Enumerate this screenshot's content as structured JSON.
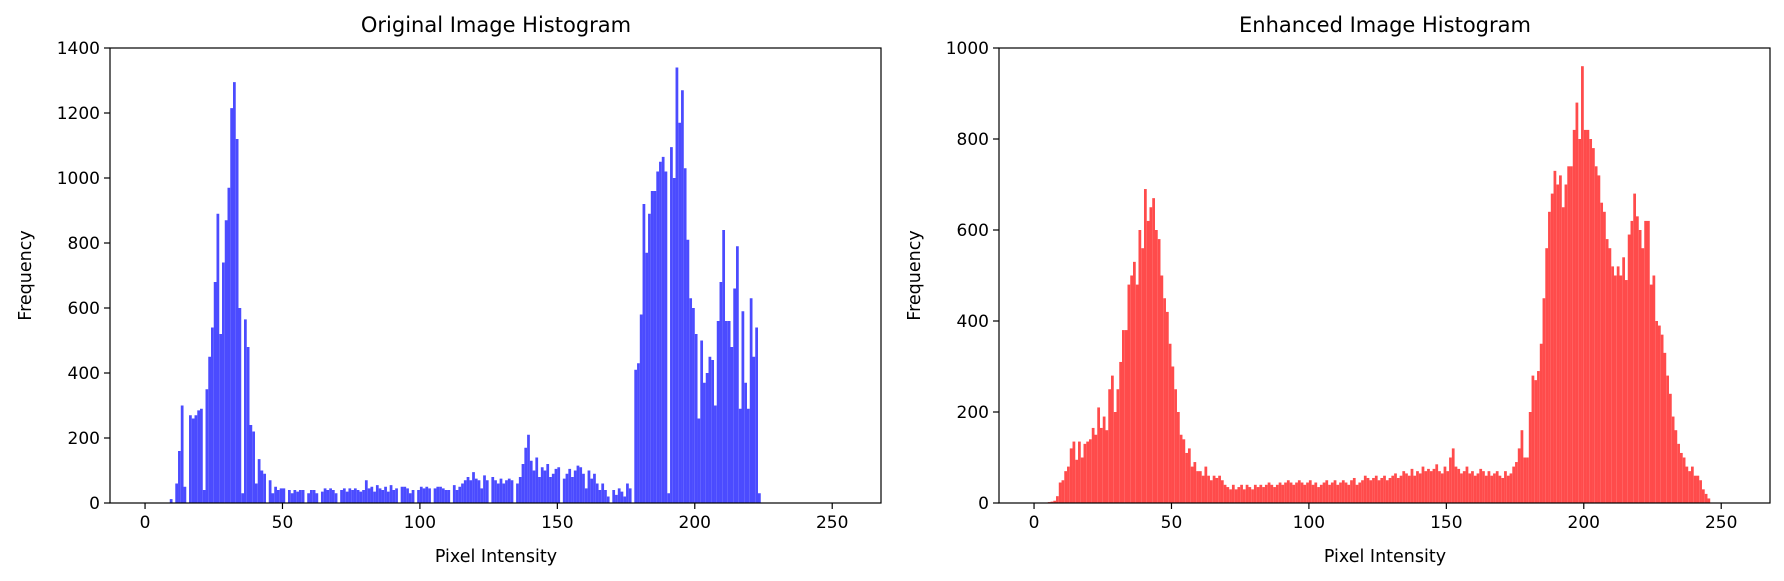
{
  "chart_data": [
    {
      "type": "bar",
      "title": "Original Image Histogram",
      "xlabel": "Pixel Intensity",
      "ylabel": "Frequency",
      "xlim": [
        -12.75,
        267.75
      ],
      "ylim": [
        0,
        1400
      ],
      "xticks": [
        0,
        50,
        100,
        150,
        200,
        250
      ],
      "yticks": [
        0,
        200,
        400,
        600,
        800,
        1000,
        1200,
        1400
      ],
      "grid": false,
      "bar_color": "#4b4bff",
      "x_start": 0,
      "bin_width": 1,
      "values": [
        0,
        0,
        0,
        0,
        0,
        0,
        0,
        0,
        0,
        12,
        0,
        60,
        160,
        300,
        50,
        0,
        270,
        260,
        270,
        285,
        290,
        40,
        350,
        450,
        540,
        680,
        890,
        520,
        740,
        870,
        970,
        1215,
        1295,
        1120,
        600,
        30,
        565,
        480,
        240,
        220,
        60,
        135,
        100,
        90,
        0,
        70,
        30,
        50,
        40,
        45,
        45,
        0,
        40,
        30,
        40,
        35,
        40,
        40,
        0,
        30,
        40,
        40,
        30,
        0,
        35,
        45,
        40,
        45,
        40,
        30,
        0,
        40,
        45,
        35,
        45,
        40,
        45,
        40,
        35,
        40,
        70,
        45,
        50,
        35,
        55,
        45,
        40,
        50,
        35,
        55,
        40,
        45,
        0,
        50,
        50,
        45,
        30,
        40,
        0,
        40,
        50,
        45,
        50,
        45,
        0,
        45,
        50,
        50,
        45,
        40,
        40,
        0,
        55,
        40,
        50,
        60,
        70,
        80,
        70,
        95,
        75,
        70,
        45,
        85,
        70,
        0,
        80,
        70,
        60,
        75,
        60,
        70,
        75,
        70,
        0,
        60,
        80,
        120,
        170,
        210,
        130,
        100,
        140,
        80,
        110,
        100,
        120,
        80,
        90,
        105,
        110,
        0,
        75,
        90,
        105,
        80,
        100,
        115,
        110,
        90,
        45,
        100,
        75,
        90,
        60,
        40,
        60,
        40,
        20,
        0,
        40,
        25,
        45,
        35,
        20,
        60,
        45,
        0,
        410,
        430,
        580,
        920,
        770,
        890,
        960,
        960,
        1020,
        1050,
        1065,
        1020,
        30,
        1095,
        1000,
        1340,
        1170,
        1270,
        1030,
        810,
        630,
        600,
        520,
        260,
        500,
        370,
        400,
        450,
        440,
        300,
        560,
        680,
        840,
        560,
        560,
        480,
        660,
        790,
        290,
        590,
        370,
        290,
        630,
        450,
        540,
        30,
        0,
        0,
        0,
        0,
        0,
        0,
        0,
        0,
        0,
        0,
        0,
        0,
        0,
        0,
        0,
        0,
        0
      ]
    },
    {
      "type": "bar",
      "title": "Enhanced Image Histogram",
      "xlabel": "Pixel Intensity",
      "ylabel": "Frequency",
      "xlim": [
        -12.75,
        267.75
      ],
      "ylim": [
        0,
        1000
      ],
      "xticks": [
        0,
        50,
        100,
        150,
        200,
        250
      ],
      "yticks": [
        0,
        200,
        400,
        600,
        800,
        1000
      ],
      "grid": false,
      "bar_color": "#ff4b4b",
      "x_start": 0,
      "bin_width": 1,
      "values": [
        0,
        0,
        0,
        0,
        0,
        2,
        3,
        5,
        15,
        45,
        50,
        70,
        80,
        120,
        135,
        95,
        135,
        100,
        130,
        135,
        140,
        165,
        150,
        210,
        165,
        190,
        160,
        250,
        280,
        200,
        250,
        310,
        380,
        380,
        480,
        500,
        530,
        480,
        600,
        560,
        690,
        620,
        650,
        670,
        600,
        580,
        500,
        450,
        420,
        350,
        300,
        250,
        200,
        150,
        140,
        110,
        120,
        80,
        90,
        70,
        70,
        60,
        80,
        60,
        50,
        60,
        55,
        60,
        50,
        40,
        35,
        30,
        40,
        30,
        35,
        40,
        30,
        40,
        35,
        30,
        40,
        35,
        40,
        35,
        40,
        45,
        40,
        35,
        40,
        45,
        40,
        45,
        50,
        45,
        40,
        45,
        50,
        45,
        40,
        45,
        50,
        40,
        45,
        35,
        40,
        45,
        50,
        40,
        45,
        50,
        40,
        45,
        50,
        45,
        40,
        50,
        55,
        40,
        45,
        50,
        60,
        55,
        50,
        55,
        60,
        50,
        55,
        60,
        50,
        55,
        60,
        65,
        55,
        60,
        70,
        65,
        60,
        75,
        60,
        70,
        65,
        80,
        70,
        75,
        70,
        75,
        85,
        70,
        65,
        80,
        70,
        100,
        120,
        80,
        75,
        65,
        70,
        80,
        65,
        70,
        60,
        65,
        75,
        70,
        60,
        70,
        60,
        65,
        70,
        60,
        55,
        70,
        60,
        65,
        80,
        90,
        120,
        160,
        100,
        100,
        200,
        280,
        270,
        290,
        350,
        450,
        560,
        640,
        680,
        730,
        700,
        720,
        650,
        700,
        740,
        740,
        820,
        880,
        800,
        960,
        820,
        820,
        800,
        780,
        740,
        720,
        660,
        640,
        580,
        560,
        520,
        500,
        520,
        500,
        540,
        490,
        590,
        620,
        680,
        630,
        600,
        560,
        620,
        620,
        480,
        500,
        400,
        390,
        370,
        330,
        280,
        240,
        190,
        160,
        130,
        110,
        100,
        80,
        70,
        80,
        60,
        60,
        50,
        30,
        20,
        10,
        0,
        0,
        0,
        0,
        0,
        0,
        0,
        0
      ]
    }
  ]
}
